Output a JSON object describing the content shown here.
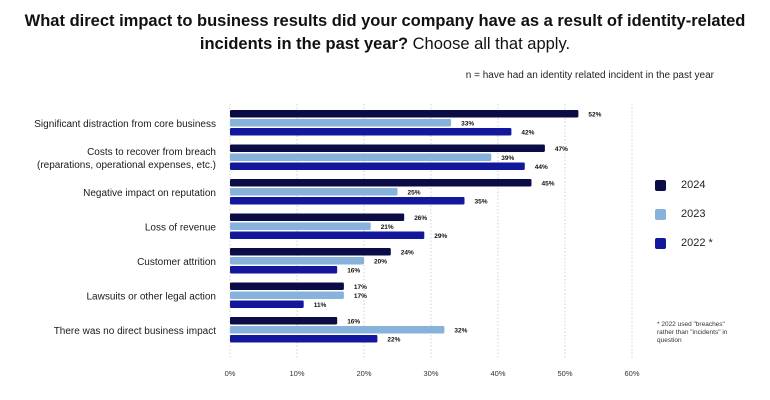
{
  "title": {
    "bold": "What direct impact to business results did your company have as a result of identity-related incidents in the past year?",
    "normal": "Choose all that apply."
  },
  "note": "n = have had an identity related incident in the past year",
  "footnote": "* 2022 used \"breaches\" rather than \"incidents\" in question",
  "colors": {
    "2024": "#0b0c45",
    "2023": "#86b2dc",
    "2022": "#12179b"
  },
  "chart_data": {
    "type": "bar",
    "orientation": "horizontal",
    "categories": [
      [
        "Significant distraction from core business"
      ],
      [
        "Costs to recover from breach",
        "(reparations, operational expenses, etc.)"
      ],
      [
        "Negative impact on reputation"
      ],
      [
        "Loss of revenue"
      ],
      [
        "Customer attrition"
      ],
      [
        "Lawsuits or other legal action"
      ],
      [
        "There was no direct business impact"
      ]
    ],
    "series": [
      {
        "name": "2024",
        "values": [
          52,
          47,
          45,
          26,
          24,
          17,
          16
        ]
      },
      {
        "name": "2023",
        "values": [
          33,
          39,
          25,
          21,
          20,
          17,
          32
        ]
      },
      {
        "name": "2022 *",
        "values": [
          42,
          44,
          35,
          29,
          16,
          11,
          22
        ]
      }
    ],
    "xlim": [
      0,
      60
    ],
    "xticks": [
      "0%",
      "10%",
      "20%",
      "30%",
      "40%",
      "50%",
      "60%"
    ],
    "value_suffix": "%",
    "grid": "vertical dashed",
    "legend_position": "right"
  }
}
